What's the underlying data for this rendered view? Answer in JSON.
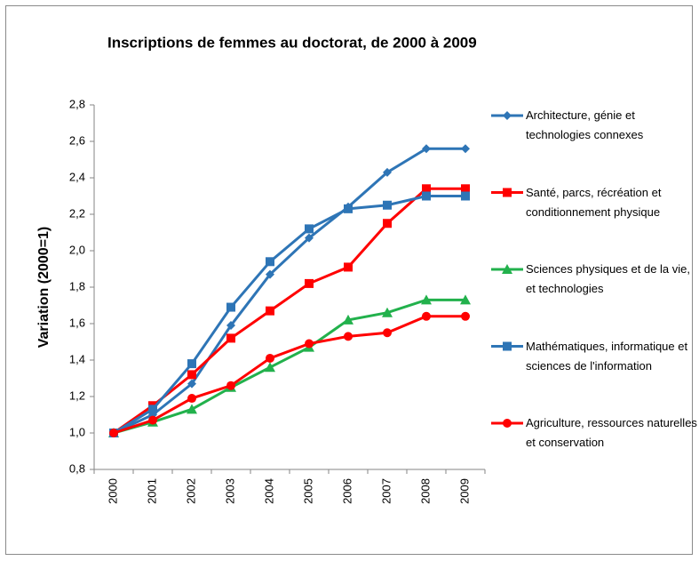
{
  "chart_data": {
    "type": "line",
    "title": "Inscriptions de femmes au doctorat, de 2000 à 2009",
    "y_label": "Variation (2000=1)",
    "categories": [
      "2000",
      "2001",
      "2002",
      "2003",
      "2004",
      "2005",
      "2006",
      "2007",
      "2008",
      "2009"
    ],
    "series": [
      {
        "name": "Architecture, génie et technologies connexes",
        "color": "#2e75b6",
        "marker": "diamond",
        "values": [
          1.0,
          1.1,
          1.27,
          1.59,
          1.87,
          2.07,
          2.24,
          2.43,
          2.56,
          2.56
        ]
      },
      {
        "name": "Santé, parcs, récréation et conditionnement physique",
        "color": "#ff0000",
        "marker": "square",
        "values": [
          1.0,
          1.15,
          1.32,
          1.52,
          1.67,
          1.82,
          1.91,
          2.15,
          2.34,
          2.34
        ]
      },
      {
        "name": "Sciences physiques et de la vie, et technologies",
        "color": "#22b14c",
        "marker": "triangle",
        "values": [
          1.0,
          1.06,
          1.13,
          1.25,
          1.36,
          1.47,
          1.62,
          1.66,
          1.73,
          1.73
        ]
      },
      {
        "name": "Mathématiques, informatique et sciences de l'information",
        "color": "#2e75b6",
        "marker": "square",
        "values": [
          1.0,
          1.13,
          1.38,
          1.69,
          1.94,
          2.12,
          2.23,
          2.25,
          2.3,
          2.3
        ]
      },
      {
        "name": "Agriculture, ressources naturelles et conservation",
        "color": "#ff0000",
        "marker": "circle",
        "values": [
          1.0,
          1.07,
          1.19,
          1.26,
          1.41,
          1.49,
          1.53,
          1.55,
          1.64,
          1.64
        ]
      }
    ],
    "ylim": [
      0.8,
      2.8
    ],
    "yticks": [
      {
        "value": 0.8,
        "label": "0,8"
      },
      {
        "value": 1.0,
        "label": "1,0"
      },
      {
        "value": 1.2,
        "label": "1,2"
      },
      {
        "value": 1.4,
        "label": "1,4"
      },
      {
        "value": 1.6,
        "label": "1,6"
      },
      {
        "value": 1.8,
        "label": "1,8"
      },
      {
        "value": 2.0,
        "label": "2,0"
      },
      {
        "value": 2.2,
        "label": "2,2"
      },
      {
        "value": 2.4,
        "label": "2,4"
      },
      {
        "value": 2.6,
        "label": "2,6"
      },
      {
        "value": 2.8,
        "label": "2,8"
      }
    ],
    "grid": false,
    "legend": "right"
  }
}
